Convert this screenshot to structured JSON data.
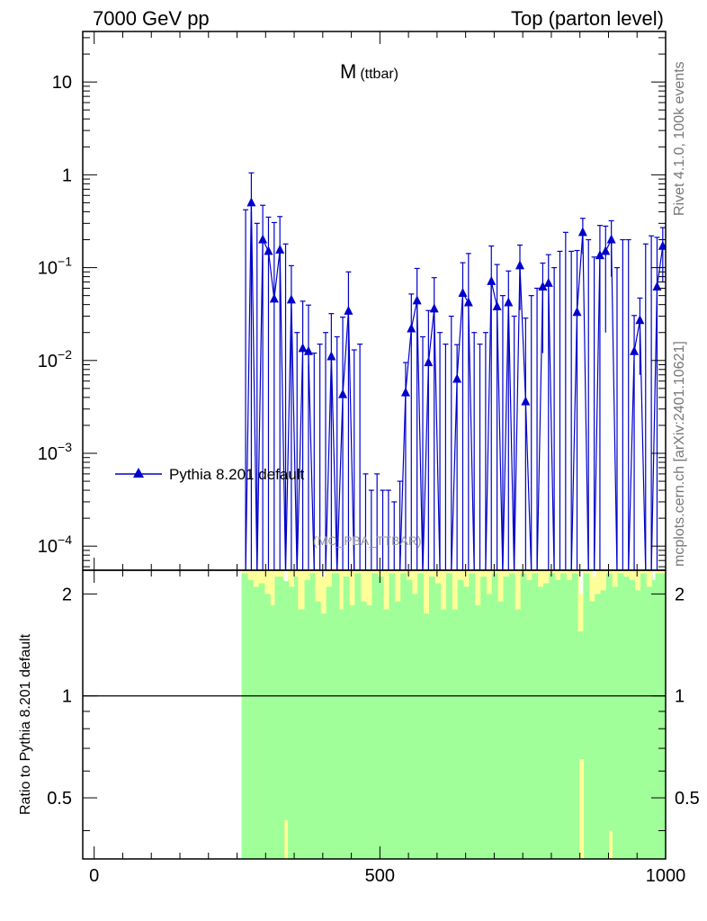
{
  "header": {
    "left": "7000 GeV pp",
    "right": "Top (parton level)"
  },
  "side_labels": {
    "rivet": "Rivet 4.1.0,  100k events",
    "mcplots": "mcplots.cern.ch [arXiv:2401.10621]"
  },
  "colors": {
    "series": "#0000cc",
    "band_green": "#a0ff98",
    "band_yellow": "#ffff99"
  },
  "chart_data": {
    "type": "line",
    "title": "M",
    "title_sub": "(ttbar)",
    "watermark": "(MC_PBA_TTBAR)",
    "legend": "Pythia 8.201 default",
    "legend_position": "middle-left",
    "xlabel": "",
    "ylabel": "",
    "xlim": [
      -20,
      1000
    ],
    "ylim": [
      5.5e-05,
      35
    ],
    "yscale": "log",
    "x_ticks": [
      0,
      500,
      1000
    ],
    "y_ticks": [
      {
        "v": 0.0001,
        "m": "10",
        "e": "−4"
      },
      {
        "v": 0.001,
        "m": "10",
        "e": "−3"
      },
      {
        "v": 0.01,
        "m": "10",
        "e": "−2"
      },
      {
        "v": 0.1,
        "m": "10",
        "e": "−1"
      },
      {
        "v": 1,
        "m": "1",
        "e": ""
      },
      {
        "v": 10,
        "m": "10",
        "e": ""
      }
    ],
    "series": [
      {
        "name": "Pythia 8.201 default",
        "x": [
          265,
          275,
          285,
          295,
          305,
          315,
          325,
          335,
          345,
          355,
          365,
          375,
          385,
          395,
          405,
          415,
          425,
          435,
          445,
          455,
          465,
          475,
          485,
          495,
          505,
          515,
          525,
          535,
          545,
          555,
          565,
          575,
          585,
          595,
          605,
          615,
          625,
          635,
          645,
          655,
          665,
          675,
          685,
          695,
          705,
          715,
          725,
          735,
          745,
          755,
          765,
          775,
          785,
          795,
          805,
          815,
          825,
          835,
          845,
          855,
          865,
          875,
          885,
          895,
          905,
          915,
          925,
          935,
          945,
          955,
          965,
          975,
          985,
          995
        ],
        "values": [
          0,
          0.5,
          0,
          0.2,
          0.15,
          0.046,
          0.155,
          0,
          0.045,
          0,
          0.0135,
          0.0125,
          0,
          0,
          0,
          0.011,
          0,
          0.0043,
          0.034,
          0,
          0,
          0,
          0,
          0,
          0,
          0,
          0,
          0,
          0.0045,
          0.022,
          0.044,
          0,
          0.0095,
          0.036,
          0,
          0,
          0,
          0.0063,
          0.053,
          0.042,
          0,
          0,
          0,
          0.071,
          0.038,
          0,
          0.042,
          0,
          0.105,
          0.0036,
          0,
          0,
          0.062,
          0.068,
          0,
          0,
          0,
          0,
          0.033,
          0.24,
          0,
          0,
          0.135,
          0.15,
          0.2,
          0,
          0,
          0,
          0.0125,
          0.027,
          0,
          0,
          0.062,
          0.17
        ],
        "errors": [
          0.42,
          0.55,
          0.3,
          0.27,
          0.2,
          0.26,
          0.2,
          0.18,
          0.06,
          0.02,
          0.03,
          0.027,
          0.012,
          0.015,
          0.02,
          0.021,
          0.018,
          0.025,
          0.056,
          0.013,
          0.015,
          0.0006,
          0.0004,
          0.0006,
          0.0004,
          0.0004,
          0.0003,
          0.0005,
          0.005,
          0.03,
          0.054,
          0.018,
          0.025,
          0.042,
          0.02,
          0.015,
          0.03,
          0.0085,
          0.06,
          0.1,
          0.02,
          0.015,
          0.02,
          0.1,
          0.07,
          0.05,
          0.05,
          0.03,
          0.07,
          0.025,
          0.05,
          0.06,
          0.05,
          0.07,
          0.1,
          0.15,
          0.24,
          0.15,
          0.12,
          0.1,
          0.2,
          0.13,
          0.15,
          0.13,
          0.12,
          0.1,
          0.2,
          0.2,
          0.018,
          0.02,
          0.18,
          0.22,
          0.15,
          0.1
        ]
      }
    ],
    "ratio": {
      "ylabel": "Ratio to Pythia 8.201 default",
      "ylim": [
        0.33,
        2.35
      ],
      "yscale": "log",
      "y_ticks": [
        0.5,
        1,
        2
      ],
      "reference": 1,
      "band_start": 258,
      "band_end": 1000,
      "yellow_bins": [
        [
          258,
          268,
          2.3
        ],
        [
          268,
          278,
          2.2
        ],
        [
          278,
          288,
          2.1
        ],
        [
          288,
          298,
          2.15
        ],
        [
          298,
          308,
          2.0
        ],
        [
          308,
          316,
          1.85
        ],
        [
          316,
          330,
          2.25
        ],
        [
          330,
          340,
          2.2
        ],
        [
          340,
          350,
          2.1
        ],
        [
          350,
          356,
          2.25
        ],
        [
          356,
          368,
          1.8
        ],
        [
          368,
          378,
          2.2
        ],
        [
          378,
          386,
          2.3
        ],
        [
          386,
          396,
          1.9
        ],
        [
          396,
          406,
          1.75
        ],
        [
          406,
          416,
          2.1
        ],
        [
          416,
          428,
          2.3
        ],
        [
          428,
          436,
          1.8
        ],
        [
          436,
          446,
          2.25
        ],
        [
          446,
          456,
          1.85
        ],
        [
          456,
          466,
          2.3
        ],
        [
          466,
          476,
          1.9
        ],
        [
          476,
          486,
          1.85
        ],
        [
          486,
          496,
          2.3
        ],
        [
          496,
          506,
          2.25
        ],
        [
          506,
          516,
          1.8
        ],
        [
          516,
          526,
          2.3
        ],
        [
          526,
          536,
          1.9
        ],
        [
          536,
          546,
          2.3
        ],
        [
          546,
          556,
          2.2
        ],
        [
          556,
          566,
          2.0
        ],
        [
          566,
          576,
          2.3
        ],
        [
          576,
          586,
          1.75
        ],
        [
          586,
          596,
          2.25
        ],
        [
          596,
          606,
          2.15
        ],
        [
          606,
          616,
          1.8
        ],
        [
          616,
          626,
          2.3
        ],
        [
          626,
          636,
          1.8
        ],
        [
          636,
          646,
          2.2
        ],
        [
          646,
          656,
          2.1
        ],
        [
          656,
          666,
          2.3
        ],
        [
          666,
          676,
          1.85
        ],
        [
          676,
          686,
          2.25
        ],
        [
          686,
          696,
          2.0
        ],
        [
          696,
          706,
          2.3
        ],
        [
          706,
          716,
          1.9
        ],
        [
          716,
          726,
          2.25
        ],
        [
          726,
          736,
          2.3
        ],
        [
          736,
          746,
          1.8
        ],
        [
          746,
          756,
          2.3
        ],
        [
          756,
          766,
          2.2
        ],
        [
          766,
          776,
          2.3
        ],
        [
          776,
          786,
          2.1
        ],
        [
          786,
          796,
          2.15
        ],
        [
          796,
          806,
          2.3
        ],
        [
          806,
          816,
          2.2
        ],
        [
          816,
          826,
          2.3
        ],
        [
          826,
          836,
          2.2
        ],
        [
          836,
          846,
          2.3
        ],
        [
          846,
          856,
          1.55
        ],
        [
          856,
          866,
          2.3
        ],
        [
          866,
          876,
          1.9
        ],
        [
          876,
          886,
          2.0
        ],
        [
          886,
          896,
          2.05
        ],
        [
          896,
          906,
          2.3
        ],
        [
          906,
          916,
          2.1
        ],
        [
          916,
          926,
          2.3
        ],
        [
          926,
          936,
          2.25
        ],
        [
          936,
          946,
          2.2
        ],
        [
          946,
          956,
          2.05
        ],
        [
          956,
          966,
          2.3
        ],
        [
          966,
          976,
          2.1
        ],
        [
          976,
          986,
          2.3
        ],
        [
          986,
          1000,
          2.3
        ]
      ],
      "white_bins": [
        [
          333,
          339,
          2.18
        ],
        [
          397,
          404,
          2.25
        ],
        [
          849,
          855,
          2.0
        ],
        [
          872,
          878,
          2.25
        ],
        [
          977,
          982,
          2.2
        ]
      ],
      "bottom_yellow": [
        [
          333,
          339,
          0.43
        ],
        [
          849,
          857,
          0.65
        ],
        [
          901,
          907,
          0.4
        ]
      ]
    }
  }
}
